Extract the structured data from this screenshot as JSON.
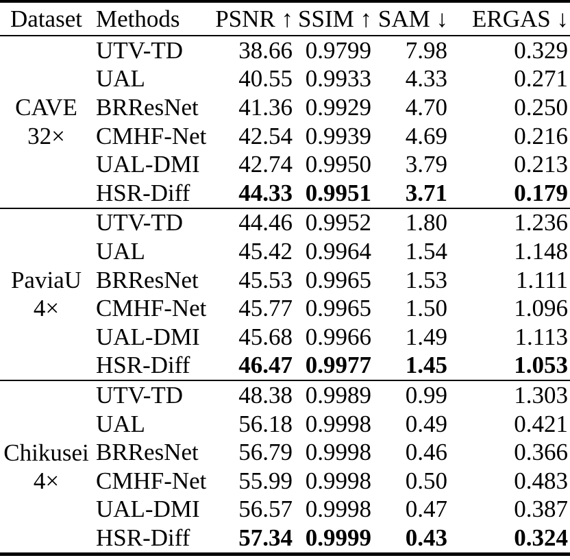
{
  "table": {
    "columns": [
      "Dataset",
      "Methods",
      "PSNR ↑",
      "SSIM ↑",
      "SAM ↓",
      "ERGAS ↓"
    ],
    "groups": [
      {
        "dataset_line1": "CAVE",
        "dataset_line2": "32×",
        "rows": [
          {
            "method": "UTV-TD",
            "psnr": "38.66",
            "ssim": "0.9799",
            "sam": "7.98",
            "ergas": "0.329",
            "best": false
          },
          {
            "method": "UAL",
            "psnr": "40.55",
            "ssim": "0.9933",
            "sam": "4.33",
            "ergas": "0.271",
            "best": false
          },
          {
            "method": "BRResNet",
            "psnr": "41.36",
            "ssim": "0.9929",
            "sam": "4.70",
            "ergas": "0.250",
            "best": false
          },
          {
            "method": "CMHF-Net",
            "psnr": "42.54",
            "ssim": "0.9939",
            "sam": "4.69",
            "ergas": "0.216",
            "best": false
          },
          {
            "method": "UAL-DMI",
            "psnr": "42.74",
            "ssim": "0.9950",
            "sam": "3.79",
            "ergas": "0.213",
            "best": false
          },
          {
            "method": "HSR-Diff",
            "psnr": "44.33",
            "ssim": "0.9951",
            "sam": "3.71",
            "ergas": "0.179",
            "best": true
          }
        ]
      },
      {
        "dataset_line1": "PaviaU",
        "dataset_line2": "4×",
        "rows": [
          {
            "method": "UTV-TD",
            "psnr": "44.46",
            "ssim": "0.9952",
            "sam": "1.80",
            "ergas": "1.236",
            "best": false
          },
          {
            "method": "UAL",
            "psnr": "45.42",
            "ssim": "0.9964",
            "sam": "1.54",
            "ergas": "1.148",
            "best": false
          },
          {
            "method": "BRResNet",
            "psnr": "45.53",
            "ssim": "0.9965",
            "sam": "1.53",
            "ergas": "1.111",
            "best": false
          },
          {
            "method": "CMHF-Net",
            "psnr": "45.77",
            "ssim": "0.9965",
            "sam": "1.50",
            "ergas": "1.096",
            "best": false
          },
          {
            "method": "UAL-DMI",
            "psnr": "45.68",
            "ssim": "0.9966",
            "sam": "1.49",
            "ergas": "1.113",
            "best": false
          },
          {
            "method": "HSR-Diff",
            "psnr": "46.47",
            "ssim": "0.9977",
            "sam": "1.45",
            "ergas": "1.053",
            "best": true
          }
        ]
      },
      {
        "dataset_line1": "Chikusei",
        "dataset_line2": "4×",
        "rows": [
          {
            "method": "UTV-TD",
            "psnr": "48.38",
            "ssim": "0.9989",
            "sam": "0.99",
            "ergas": "1.303",
            "best": false
          },
          {
            "method": "UAL",
            "psnr": "56.18",
            "ssim": "0.9998",
            "sam": "0.49",
            "ergas": "0.421",
            "best": false
          },
          {
            "method": "BRResNet",
            "psnr": "56.79",
            "ssim": "0.9998",
            "sam": "0.46",
            "ergas": "0.366",
            "best": false
          },
          {
            "method": "CMHF-Net",
            "psnr": "55.99",
            "ssim": "0.9998",
            "sam": "0.50",
            "ergas": "0.483",
            "best": false
          },
          {
            "method": "UAL-DMI",
            "psnr": "56.57",
            "ssim": "0.9998",
            "sam": "0.47",
            "ergas": "0.387",
            "best": false
          },
          {
            "method": "HSR-Diff",
            "psnr": "57.34",
            "ssim": "0.9999",
            "sam": "0.43",
            "ergas": "0.324",
            "best": true
          }
        ]
      }
    ]
  }
}
